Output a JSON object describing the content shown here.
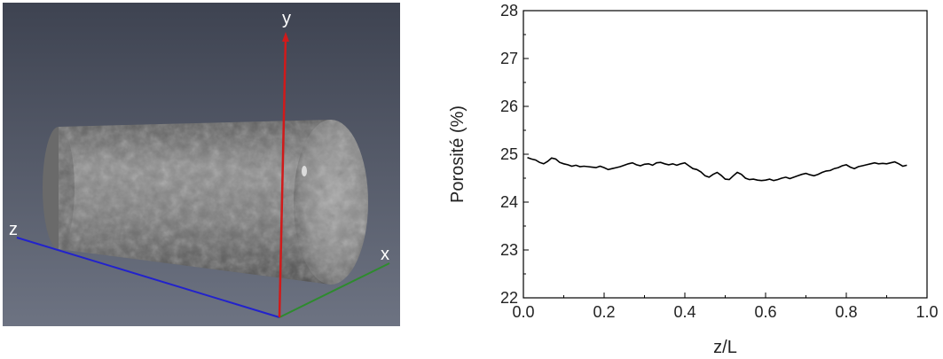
{
  "scene": {
    "axis_labels": {
      "x": "x",
      "y": "y",
      "z": "z"
    },
    "colors": {
      "background_top": "#3e4351",
      "background_bottom": "#6d7382",
      "x_axis": "#2e8b2e",
      "y_axis": "#d11a1a",
      "z_axis": "#2222cc"
    }
  },
  "chart_data": {
    "type": "line",
    "xlabel": "z/L",
    "ylabel": "Porosité (%)",
    "xlim": [
      0.0,
      1.0
    ],
    "ylim": [
      22,
      28
    ],
    "xticks": [
      "0.0",
      "0.2",
      "0.4",
      "0.6",
      "0.8",
      "1.0"
    ],
    "yticks": [
      "22",
      "23",
      "24",
      "25",
      "26",
      "27",
      "28"
    ],
    "grid": false,
    "series": [
      {
        "x": [
          0.01,
          0.02,
          0.03,
          0.04,
          0.05,
          0.06,
          0.07,
          0.08,
          0.09,
          0.1,
          0.11,
          0.12,
          0.13,
          0.14,
          0.15,
          0.16,
          0.17,
          0.18,
          0.19,
          0.2,
          0.21,
          0.22,
          0.23,
          0.24,
          0.25,
          0.26,
          0.27,
          0.28,
          0.29,
          0.3,
          0.31,
          0.32,
          0.33,
          0.34,
          0.35,
          0.36,
          0.37,
          0.38,
          0.39,
          0.4,
          0.41,
          0.42,
          0.43,
          0.44,
          0.45,
          0.46,
          0.47,
          0.48,
          0.49,
          0.5,
          0.51,
          0.52,
          0.53,
          0.54,
          0.55,
          0.56,
          0.57,
          0.58,
          0.59,
          0.6,
          0.61,
          0.62,
          0.63,
          0.64,
          0.65,
          0.66,
          0.67,
          0.68,
          0.69,
          0.7,
          0.71,
          0.72,
          0.73,
          0.74,
          0.75,
          0.76,
          0.77,
          0.78,
          0.79,
          0.8,
          0.81,
          0.82,
          0.83,
          0.84,
          0.85,
          0.86,
          0.87,
          0.88,
          0.89,
          0.9,
          0.91,
          0.92,
          0.93,
          0.94,
          0.95
        ],
        "y": [
          24.93,
          24.9,
          24.88,
          24.83,
          24.8,
          24.85,
          24.92,
          24.9,
          24.83,
          24.8,
          24.78,
          24.75,
          24.77,
          24.74,
          24.75,
          24.74,
          24.73,
          24.72,
          24.75,
          24.72,
          24.68,
          24.7,
          24.72,
          24.74,
          24.77,
          24.8,
          24.82,
          24.78,
          24.76,
          24.79,
          24.8,
          24.77,
          24.82,
          24.83,
          24.8,
          24.78,
          24.8,
          24.77,
          24.8,
          24.82,
          24.76,
          24.7,
          24.68,
          24.63,
          24.55,
          24.52,
          24.58,
          24.62,
          24.56,
          24.48,
          24.47,
          24.55,
          24.62,
          24.58,
          24.5,
          24.47,
          24.48,
          24.46,
          24.45,
          24.46,
          24.48,
          24.45,
          24.47,
          24.5,
          24.52,
          24.49,
          24.52,
          24.55,
          24.58,
          24.6,
          24.57,
          24.55,
          24.58,
          24.62,
          24.65,
          24.66,
          24.7,
          24.72,
          24.76,
          24.78,
          24.73,
          24.7,
          24.74,
          24.76,
          24.78,
          24.8,
          24.82,
          24.8,
          24.81,
          24.8,
          24.82,
          24.84,
          24.8,
          24.75,
          24.77
        ]
      }
    ]
  }
}
